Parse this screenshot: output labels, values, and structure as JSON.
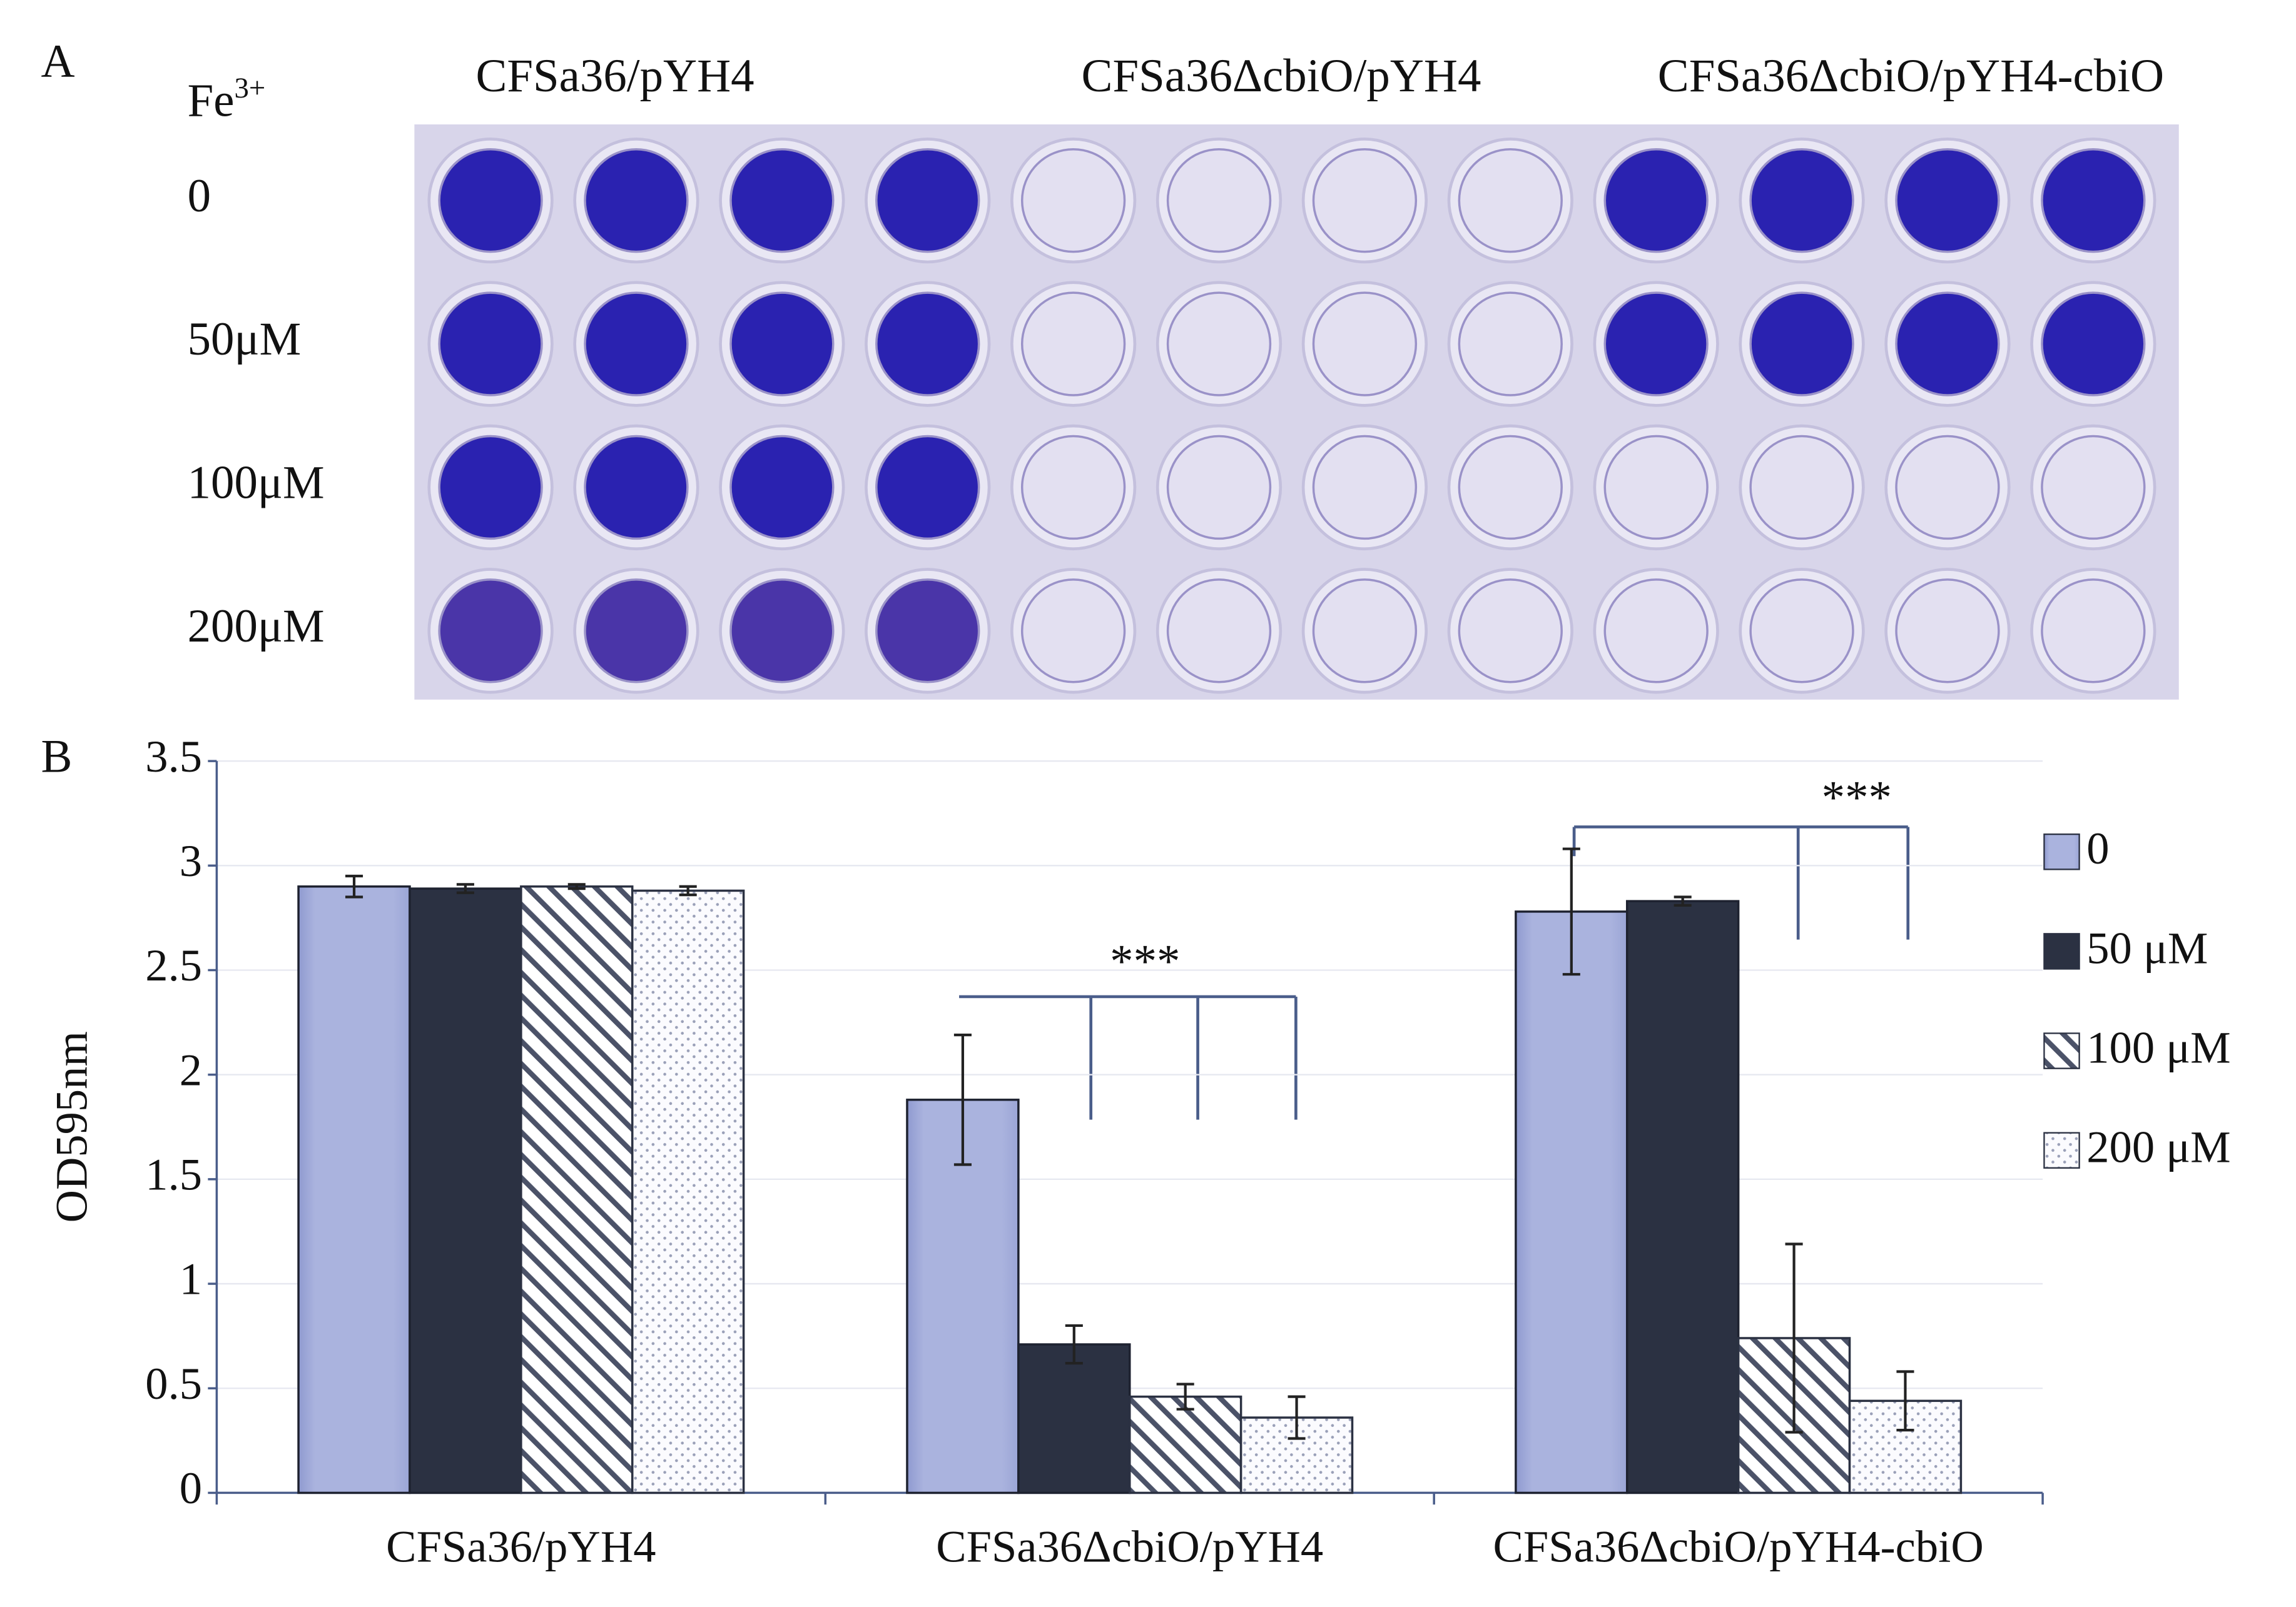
{
  "panel_a": {
    "label": "A",
    "ion": {
      "base": "Fe",
      "superscript": "3+"
    },
    "column_labels": [
      "CFSa36/pYH4",
      "CFSa36ΔcbiO/pYH4",
      "CFSa36ΔcbiO/pYH4-cbiO"
    ],
    "row_labels": [
      "0",
      "50μM",
      "100μM",
      "200μM"
    ]
  },
  "chart_data": {
    "type": "bar",
    "panel_label": "B",
    "y_label": "OD595nm",
    "categories": [
      "CFSa36/pYH4",
      "CFSa36ΔcbiO/pYH4",
      "CFSa36ΔcbiO/pYH4-cbiO"
    ],
    "series": [
      {
        "name": "0",
        "color": "#aab3de",
        "pattern": "solid",
        "values": [
          2.9,
          1.88,
          2.78
        ],
        "errors": [
          0.05,
          0.31,
          0.3
        ]
      },
      {
        "name": "50 μM",
        "color": "#2b3142",
        "pattern": "solid",
        "values": [
          2.89,
          0.71,
          2.83
        ],
        "errors": [
          0.02,
          0.09,
          0.02
        ]
      },
      {
        "name": "100 μM",
        "color": "#4b5268",
        "pattern": "hatch",
        "values": [
          2.9,
          0.46,
          0.74
        ],
        "errors": [
          0.01,
          0.06,
          0.45
        ]
      },
      {
        "name": "200 μM",
        "color": "#9aa0b8",
        "pattern": "dots",
        "values": [
          2.88,
          0.36,
          0.44
        ],
        "errors": [
          0.02,
          0.1,
          0.14
        ]
      }
    ],
    "ylim": [
      0,
      3.5
    ],
    "yticks": [
      0,
      0.5,
      1,
      1.5,
      2,
      2.5,
      3,
      3.5
    ],
    "grid": true,
    "legend": "right",
    "annotations": [
      "***",
      "***"
    ]
  }
}
